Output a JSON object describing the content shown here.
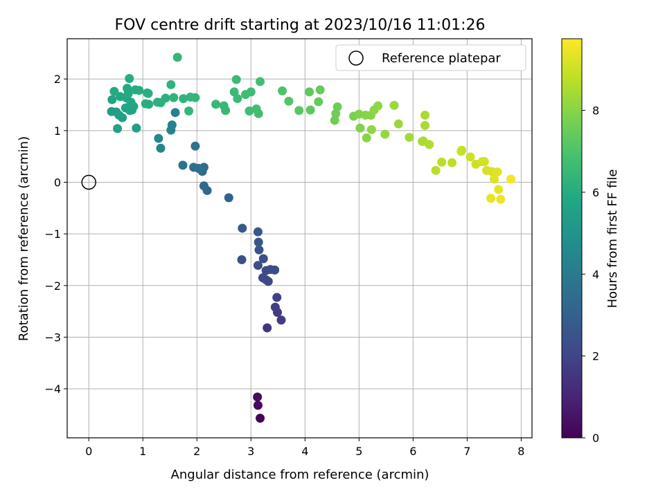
{
  "chart_data": {
    "type": "scatter",
    "title": "FOV centre drift starting at 2023/10/16 11:01:26",
    "xlabel": "Angular distance from reference (arcmin)",
    "ylabel": "Rotation from reference (arcmin)",
    "xlim": [
      -0.4,
      8.2
    ],
    "ylim": [
      -4.95,
      2.78
    ],
    "xticks": [
      0,
      1,
      2,
      3,
      4,
      5,
      6,
      7,
      8
    ],
    "yticks": [
      -4,
      -3,
      -2,
      -1,
      0,
      1,
      2
    ],
    "grid": true,
    "legend": {
      "placement": "top-right",
      "entries": [
        "Reference platepar"
      ]
    },
    "reference_point": {
      "name": "Reference platepar",
      "x": 0,
      "y": 0
    },
    "colorbar": {
      "label": "Hours from first FF file",
      "colormap": "viridis",
      "range": [
        0,
        9.75
      ],
      "ticks": [
        0,
        2,
        4,
        6,
        8
      ]
    },
    "points": [
      {
        "x": 3.17,
        "y": -4.57,
        "c": 0.1
      },
      {
        "x": 3.13,
        "y": -4.32,
        "c": 0.2
      },
      {
        "x": 3.12,
        "y": -4.16,
        "c": 0.3
      },
      {
        "x": 3.3,
        "y": -2.82,
        "c": 1.5
      },
      {
        "x": 3.56,
        "y": -2.67,
        "c": 1.7
      },
      {
        "x": 3.49,
        "y": -2.52,
        "c": 1.75
      },
      {
        "x": 3.45,
        "y": -2.42,
        "c": 1.8
      },
      {
        "x": 3.48,
        "y": -2.23,
        "c": 1.9
      },
      {
        "x": 3.32,
        "y": -1.92,
        "c": 2.0
      },
      {
        "x": 3.28,
        "y": -1.89,
        "c": 2.05
      },
      {
        "x": 3.22,
        "y": -1.85,
        "c": 2.1
      },
      {
        "x": 3.28,
        "y": -1.71,
        "c": 2.15
      },
      {
        "x": 3.36,
        "y": -1.69,
        "c": 2.2
      },
      {
        "x": 3.44,
        "y": -1.7,
        "c": 2.25
      },
      {
        "x": 3.13,
        "y": -1.61,
        "c": 2.3
      },
      {
        "x": 2.83,
        "y": -1.5,
        "c": 2.4
      },
      {
        "x": 3.23,
        "y": -1.48,
        "c": 2.35
      },
      {
        "x": 3.15,
        "y": -1.31,
        "c": 2.5
      },
      {
        "x": 3.14,
        "y": -1.16,
        "c": 2.55
      },
      {
        "x": 3.13,
        "y": -0.96,
        "c": 2.6
      },
      {
        "x": 2.84,
        "y": -0.89,
        "c": 2.7
      },
      {
        "x": 2.59,
        "y": -0.3,
        "c": 3.0
      },
      {
        "x": 2.19,
        "y": -0.16,
        "c": 3.2
      },
      {
        "x": 2.13,
        "y": -0.07,
        "c": 3.3
      },
      {
        "x": 2.1,
        "y": 0.21,
        "c": 3.4
      },
      {
        "x": 2.13,
        "y": 0.29,
        "c": 3.45
      },
      {
        "x": 2.03,
        "y": 0.27,
        "c": 3.5
      },
      {
        "x": 1.94,
        "y": 0.29,
        "c": 3.55
      },
      {
        "x": 1.74,
        "y": 0.33,
        "c": 3.65
      },
      {
        "x": 1.97,
        "y": 0.7,
        "c": 3.7
      },
      {
        "x": 1.33,
        "y": 0.66,
        "c": 4.4
      },
      {
        "x": 1.29,
        "y": 0.85,
        "c": 4.5
      },
      {
        "x": 1.52,
        "y": 1.01,
        "c": 4.4
      },
      {
        "x": 1.54,
        "y": 1.11,
        "c": 4.3
      },
      {
        "x": 1.6,
        "y": 1.35,
        "c": 4.2
      },
      {
        "x": 0.53,
        "y": 1.04,
        "c": 5.6
      },
      {
        "x": 0.88,
        "y": 1.05,
        "c": 5.5
      },
      {
        "x": 0.42,
        "y": 1.37,
        "c": 5.4
      },
      {
        "x": 0.51,
        "y": 1.36,
        "c": 5.4
      },
      {
        "x": 0.56,
        "y": 1.3,
        "c": 5.5
      },
      {
        "x": 0.62,
        "y": 1.25,
        "c": 5.5
      },
      {
        "x": 0.76,
        "y": 1.39,
        "c": 5.6
      },
      {
        "x": 0.8,
        "y": 1.4,
        "c": 5.6
      },
      {
        "x": 0.68,
        "y": 1.44,
        "c": 5.7
      },
      {
        "x": 0.43,
        "y": 1.6,
        "c": 5.7
      },
      {
        "x": 0.7,
        "y": 1.63,
        "c": 5.8
      },
      {
        "x": 0.78,
        "y": 1.55,
        "c": 5.8
      },
      {
        "x": 0.83,
        "y": 1.47,
        "c": 5.8
      },
      {
        "x": 0.58,
        "y": 1.66,
        "c": 5.8
      },
      {
        "x": 0.47,
        "y": 1.76,
        "c": 5.9
      },
      {
        "x": 0.73,
        "y": 1.72,
        "c": 5.9
      },
      {
        "x": 0.71,
        "y": 1.82,
        "c": 5.9
      },
      {
        "x": 0.86,
        "y": 1.79,
        "c": 6.0
      },
      {
        "x": 0.93,
        "y": 1.78,
        "c": 6.0
      },
      {
        "x": 0.75,
        "y": 2.01,
        "c": 6.0
      },
      {
        "x": 1.05,
        "y": 1.52,
        "c": 6.1
      },
      {
        "x": 1.11,
        "y": 1.51,
        "c": 6.1
      },
      {
        "x": 1.1,
        "y": 1.72,
        "c": 6.1
      },
      {
        "x": 1.08,
        "y": 1.73,
        "c": 6.1
      },
      {
        "x": 1.27,
        "y": 1.55,
        "c": 6.2
      },
      {
        "x": 1.33,
        "y": 1.54,
        "c": 6.2
      },
      {
        "x": 1.42,
        "y": 1.63,
        "c": 6.2
      },
      {
        "x": 1.57,
        "y": 1.64,
        "c": 6.3
      },
      {
        "x": 1.52,
        "y": 1.89,
        "c": 6.3
      },
      {
        "x": 1.75,
        "y": 1.62,
        "c": 6.3
      },
      {
        "x": 1.85,
        "y": 1.38,
        "c": 6.4
      },
      {
        "x": 1.88,
        "y": 1.65,
        "c": 6.4
      },
      {
        "x": 1.97,
        "y": 1.64,
        "c": 6.4
      },
      {
        "x": 1.64,
        "y": 2.42,
        "c": 6.4
      },
      {
        "x": 2.35,
        "y": 1.51,
        "c": 6.5
      },
      {
        "x": 2.5,
        "y": 1.48,
        "c": 6.5
      },
      {
        "x": 2.53,
        "y": 1.39,
        "c": 6.5
      },
      {
        "x": 2.69,
        "y": 1.75,
        "c": 6.6
      },
      {
        "x": 2.75,
        "y": 1.62,
        "c": 6.6
      },
      {
        "x": 2.73,
        "y": 1.99,
        "c": 6.6
      },
      {
        "x": 2.9,
        "y": 1.7,
        "c": 6.7
      },
      {
        "x": 2.97,
        "y": 1.38,
        "c": 6.7
      },
      {
        "x": 3.0,
        "y": 1.75,
        "c": 6.7
      },
      {
        "x": 3.1,
        "y": 1.42,
        "c": 6.8
      },
      {
        "x": 3.14,
        "y": 1.33,
        "c": 6.8
      },
      {
        "x": 3.17,
        "y": 1.95,
        "c": 6.8
      },
      {
        "x": 3.58,
        "y": 1.77,
        "c": 7.0
      },
      {
        "x": 3.7,
        "y": 1.57,
        "c": 7.1
      },
      {
        "x": 3.89,
        "y": 1.39,
        "c": 7.2
      },
      {
        "x": 4.08,
        "y": 1.75,
        "c": 7.3
      },
      {
        "x": 4.1,
        "y": 1.4,
        "c": 7.3
      },
      {
        "x": 4.25,
        "y": 1.56,
        "c": 7.4
      },
      {
        "x": 4.28,
        "y": 1.79,
        "c": 7.4
      },
      {
        "x": 4.55,
        "y": 1.2,
        "c": 7.6
      },
      {
        "x": 4.57,
        "y": 1.33,
        "c": 7.6
      },
      {
        "x": 4.6,
        "y": 1.46,
        "c": 7.6
      },
      {
        "x": 4.9,
        "y": 1.28,
        "c": 7.8
      },
      {
        "x": 5.0,
        "y": 1.32,
        "c": 7.9
      },
      {
        "x": 5.02,
        "y": 1.05,
        "c": 7.9
      },
      {
        "x": 5.12,
        "y": 1.3,
        "c": 8.0
      },
      {
        "x": 5.14,
        "y": 0.86,
        "c": 8.0
      },
      {
        "x": 5.22,
        "y": 1.3,
        "c": 8.0
      },
      {
        "x": 5.23,
        "y": 1.02,
        "c": 8.1
      },
      {
        "x": 5.28,
        "y": 1.4,
        "c": 8.1
      },
      {
        "x": 5.35,
        "y": 1.48,
        "c": 8.1
      },
      {
        "x": 5.48,
        "y": 0.93,
        "c": 8.2
      },
      {
        "x": 5.65,
        "y": 1.49,
        "c": 8.3
      },
      {
        "x": 5.73,
        "y": 1.13,
        "c": 8.3
      },
      {
        "x": 5.93,
        "y": 0.87,
        "c": 8.4
      },
      {
        "x": 6.17,
        "y": 0.79,
        "c": 8.5
      },
      {
        "x": 6.19,
        "y": 0.8,
        "c": 8.5
      },
      {
        "x": 6.22,
        "y": 1.1,
        "c": 8.5
      },
      {
        "x": 6.22,
        "y": 1.3,
        "c": 8.5
      },
      {
        "x": 6.3,
        "y": 0.73,
        "c": 8.6
      },
      {
        "x": 6.42,
        "y": 0.23,
        "c": 8.7
      },
      {
        "x": 6.53,
        "y": 0.39,
        "c": 8.7
      },
      {
        "x": 6.72,
        "y": 0.38,
        "c": 8.8
      },
      {
        "x": 6.89,
        "y": 0.6,
        "c": 8.9
      },
      {
        "x": 6.9,
        "y": 0.62,
        "c": 8.9
      },
      {
        "x": 7.06,
        "y": 0.49,
        "c": 9.0
      },
      {
        "x": 7.16,
        "y": 0.35,
        "c": 9.0
      },
      {
        "x": 7.28,
        "y": 0.4,
        "c": 9.1
      },
      {
        "x": 7.32,
        "y": 0.4,
        "c": 9.1
      },
      {
        "x": 7.36,
        "y": 0.23,
        "c": 9.2
      },
      {
        "x": 7.45,
        "y": 0.21,
        "c": 9.2
      },
      {
        "x": 7.5,
        "y": 0.06,
        "c": 9.3
      },
      {
        "x": 7.56,
        "y": 0.2,
        "c": 9.3
      },
      {
        "x": 7.58,
        "y": -0.14,
        "c": 9.4
      },
      {
        "x": 7.44,
        "y": -0.31,
        "c": 9.4
      },
      {
        "x": 7.62,
        "y": -0.33,
        "c": 9.5
      },
      {
        "x": 7.81,
        "y": 0.06,
        "c": 9.6
      }
    ]
  }
}
